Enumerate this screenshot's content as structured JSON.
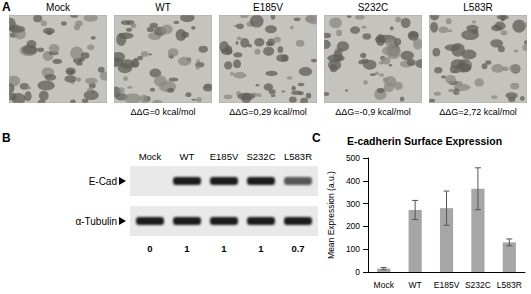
{
  "panel_a": {
    "label": "A",
    "images": [
      {
        "label": "Mock"
      },
      {
        "label": "WT",
        "ddg": "ΔΔG=0 kcal/mol"
      },
      {
        "label": "E185V",
        "ddg": "ΔΔG=0,29 kcal/mol"
      },
      {
        "label": "S232C",
        "ddg": "ΔΔG=-0,9 kcal/mol"
      },
      {
        "label": "L583R",
        "ddg": "ΔΔG=2,72 kcal/mol"
      }
    ]
  },
  "panel_b": {
    "label": "B",
    "lanes": [
      "Mock",
      "WT",
      "E185V",
      "S232C",
      "L583R"
    ],
    "rows": [
      "E-Cad",
      "α-Tubulin"
    ],
    "quantification": [
      0,
      1,
      1,
      1,
      0.7
    ]
  },
  "chart_data": {
    "panel_label": "C",
    "type": "bar",
    "title": "E-cadherin Surface Expression",
    "ylabel": "Mean Expression (a.u.)",
    "categories": [
      "Mock",
      "WT",
      "E185V",
      "S232C",
      "L583R"
    ],
    "values": [
      15,
      272,
      280,
      365,
      130
    ],
    "errors": [
      5,
      42,
      75,
      92,
      15
    ],
    "color": "#a6a6a6",
    "ylim": [
      0,
      500
    ],
    "yticks": [
      0,
      100,
      200,
      300,
      400,
      500
    ],
    "grid": false
  }
}
